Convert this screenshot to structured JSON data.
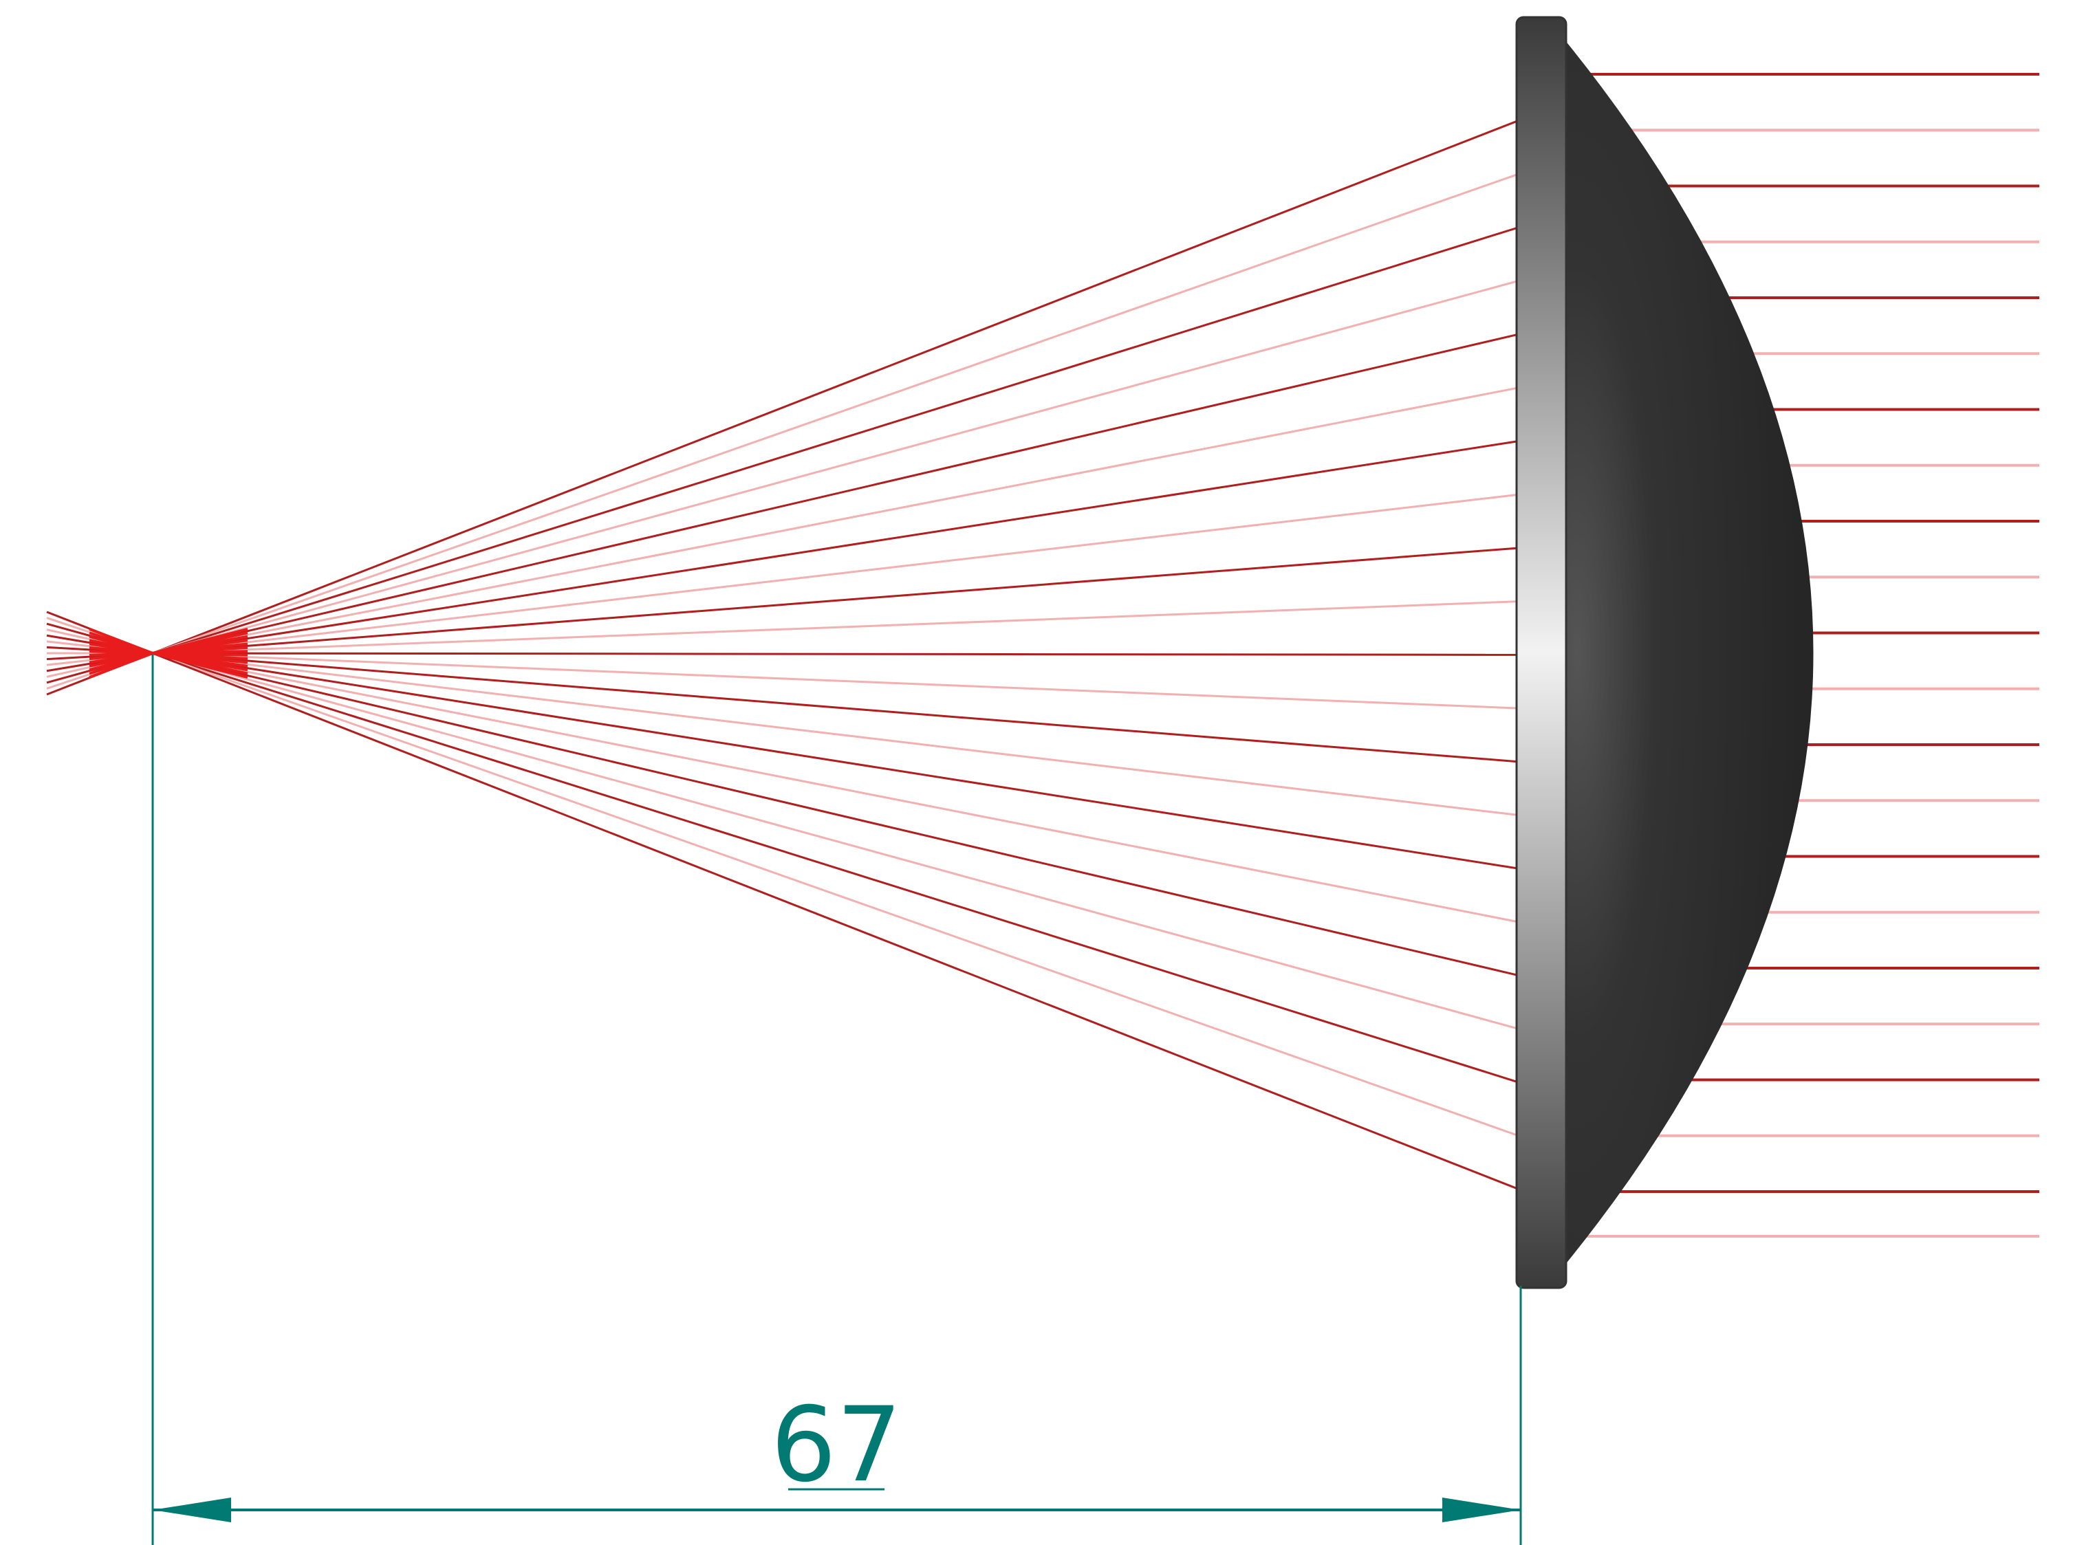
{
  "diagram": {
    "dimension": {
      "value": "67"
    },
    "colors": {
      "background": "#ffffff",
      "ray_dark": "#b01e1e",
      "ray_light": "#f2b0b0",
      "focus": "#e81c1c",
      "lens_body": "#2c2c2c",
      "lens_flange": "#5a5a5a",
      "dimension": "#007a72"
    },
    "components": [
      "light-source",
      "focal-point",
      "plano-convex-lens",
      "collimated-rays",
      "dimension-line"
    ]
  }
}
